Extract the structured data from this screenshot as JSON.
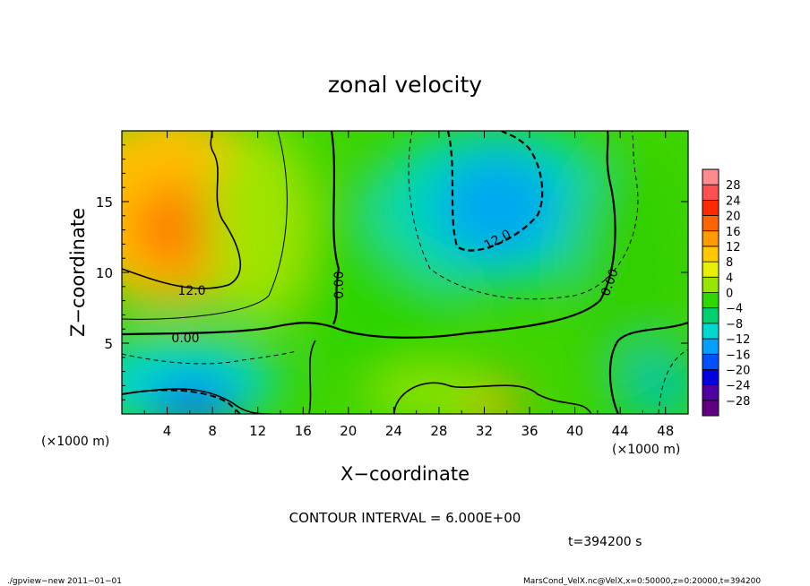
{
  "chart_data": {
    "type": "heatmap",
    "title": "zonal velocity",
    "xlabel": "X−coordinate",
    "ylabel": "Z−coordinate",
    "x_unit_note": "(×1000 m)",
    "y_unit_note": "(×1000 m)",
    "xlim": [
      0,
      50
    ],
    "ylim": [
      0,
      20
    ],
    "x_ticks": [
      4,
      8,
      12,
      16,
      20,
      24,
      28,
      32,
      36,
      40,
      44,
      48
    ],
    "y_ticks": [
      5,
      10,
      15
    ],
    "colorbar": {
      "labels": [
        "28",
        "24",
        "20",
        "16",
        "12",
        "8",
        "4",
        "0",
        "−4",
        "−8",
        "−12",
        "−16",
        "−20",
        "−24",
        "−28"
      ],
      "colors": [
        "#ff8c8c",
        "#ff5050",
        "#ff2a00",
        "#ff6400",
        "#ff9a00",
        "#ffc800",
        "#e6f000",
        "#96e600",
        "#2ed800",
        "#00d070",
        "#00d8d0",
        "#00a0ff",
        "#0050ff",
        "#0000e0",
        "#5000a0",
        "#600080"
      ]
    },
    "contour_labels": [
      {
        "text": "12.0"
      },
      {
        "text": "0.00"
      },
      {
        "text": "0.00"
      },
      {
        "text": "12.0"
      },
      {
        "text": "0.00"
      }
    ],
    "contour_interval": "CONTOUR INTERVAL = 6.000E+00",
    "time_label": "t=394200 s"
  },
  "footer": {
    "left": "./gpview−new  2011−01−01",
    "right": "MarsCond_VelX.nc@VelX,x=0:50000,z=0:20000,t=394200"
  }
}
